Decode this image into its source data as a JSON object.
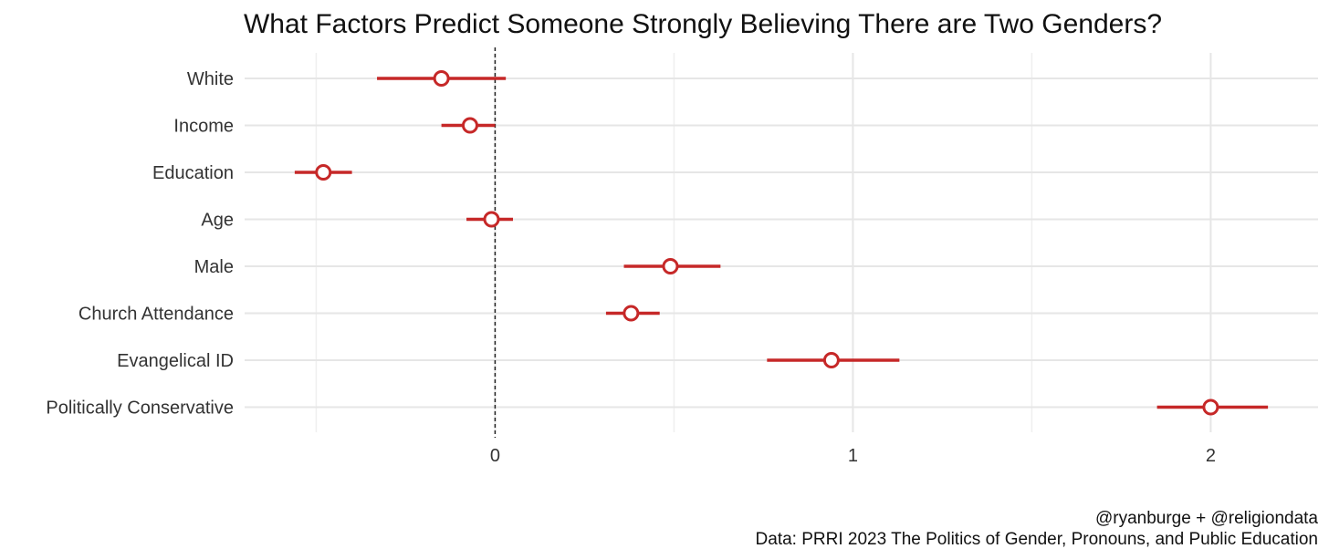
{
  "chart_data": {
    "type": "scatter",
    "subtype": "coefficient-plot",
    "title": "What Factors Predict Someone Strongly Believing There are Two Genders?",
    "xlabel": "",
    "ylabel": "",
    "xlim": [
      -0.7,
      2.3
    ],
    "xticks": [
      0,
      1,
      2
    ],
    "xtick_labels": [
      "0",
      "1",
      "2"
    ],
    "reference_line": 0,
    "grid": true,
    "color": "#c62828",
    "points": [
      {
        "label": "White",
        "estimate": -0.15,
        "low": -0.33,
        "high": 0.03
      },
      {
        "label": "Income",
        "estimate": -0.07,
        "low": -0.15,
        "high": 0.0
      },
      {
        "label": "Education",
        "estimate": -0.48,
        "low": -0.56,
        "high": -0.4
      },
      {
        "label": "Age",
        "estimate": -0.01,
        "low": -0.08,
        "high": 0.05
      },
      {
        "label": "Male",
        "estimate": 0.49,
        "low": 0.36,
        "high": 0.63
      },
      {
        "label": "Church Attendance",
        "estimate": 0.38,
        "low": 0.31,
        "high": 0.46
      },
      {
        "label": "Evangelical ID",
        "estimate": 0.94,
        "low": 0.76,
        "high": 1.13
      },
      {
        "label": "Politically Conservative",
        "estimate": 2.0,
        "low": 1.85,
        "high": 2.16
      }
    ]
  },
  "caption": {
    "line1": "@ryanburge + @religiondata",
    "line2": "Data: PRRI 2023 The Politics of Gender, Pronouns, and Public Education"
  }
}
